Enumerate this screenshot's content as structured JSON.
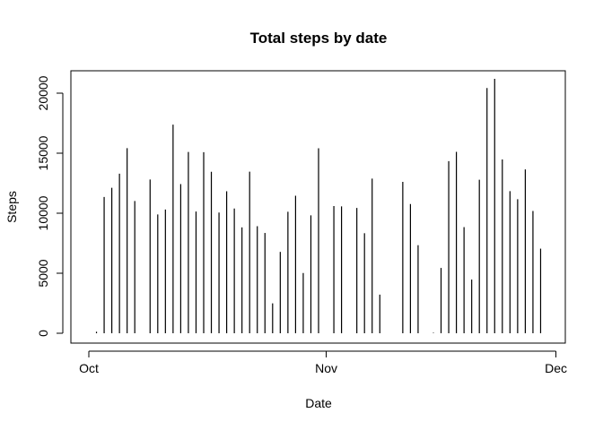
{
  "chart_data": {
    "type": "bar",
    "title": "Total steps by date",
    "xlabel": "Date",
    "ylabel": "Steps",
    "ylim": [
      0,
      21194
    ],
    "y_ticks": [
      0,
      5000,
      10000,
      15000,
      20000
    ],
    "x_ticks": [
      {
        "label": "Oct",
        "date": "2012-10-01"
      },
      {
        "label": "Nov",
        "date": "2012-11-01"
      },
      {
        "label": "Dec",
        "date": "2012-12-01"
      }
    ],
    "x_range": [
      "2012-10-01",
      "2012-11-30"
    ],
    "grid": false,
    "legend": "none",
    "color": "#000000",
    "x": [
      "2012-10-01",
      "2012-10-02",
      "2012-10-03",
      "2012-10-04",
      "2012-10-05",
      "2012-10-06",
      "2012-10-07",
      "2012-10-08",
      "2012-10-09",
      "2012-10-10",
      "2012-10-11",
      "2012-10-12",
      "2012-10-13",
      "2012-10-14",
      "2012-10-15",
      "2012-10-16",
      "2012-10-17",
      "2012-10-18",
      "2012-10-19",
      "2012-10-20",
      "2012-10-21",
      "2012-10-22",
      "2012-10-23",
      "2012-10-24",
      "2012-10-25",
      "2012-10-26",
      "2012-10-27",
      "2012-10-28",
      "2012-10-29",
      "2012-10-30",
      "2012-10-31",
      "2012-11-01",
      "2012-11-02",
      "2012-11-03",
      "2012-11-04",
      "2012-11-05",
      "2012-11-06",
      "2012-11-07",
      "2012-11-08",
      "2012-11-09",
      "2012-11-10",
      "2012-11-11",
      "2012-11-12",
      "2012-11-13",
      "2012-11-14",
      "2012-11-15",
      "2012-11-16",
      "2012-11-17",
      "2012-11-18",
      "2012-11-19",
      "2012-11-20",
      "2012-11-21",
      "2012-11-22",
      "2012-11-23",
      "2012-11-24",
      "2012-11-25",
      "2012-11-26",
      "2012-11-27",
      "2012-11-28",
      "2012-11-29",
      "2012-11-30"
    ],
    "values": [
      0,
      126,
      11352,
      12116,
      13294,
      15420,
      11015,
      0,
      12811,
      9900,
      10304,
      17382,
      12426,
      15098,
      10139,
      15084,
      13452,
      10056,
      11829,
      10395,
      8821,
      13460,
      8918,
      8355,
      2492,
      6778,
      10119,
      11458,
      5018,
      9819,
      15414,
      0,
      10600,
      10571,
      0,
      10439,
      8334,
      12883,
      3219,
      0,
      0,
      12608,
      10765,
      7336,
      0,
      41,
      5441,
      14339,
      15110,
      8841,
      4472,
      12787,
      20427,
      21194,
      14478,
      11834,
      11162,
      13646,
      10183,
      7047,
      0
    ]
  }
}
